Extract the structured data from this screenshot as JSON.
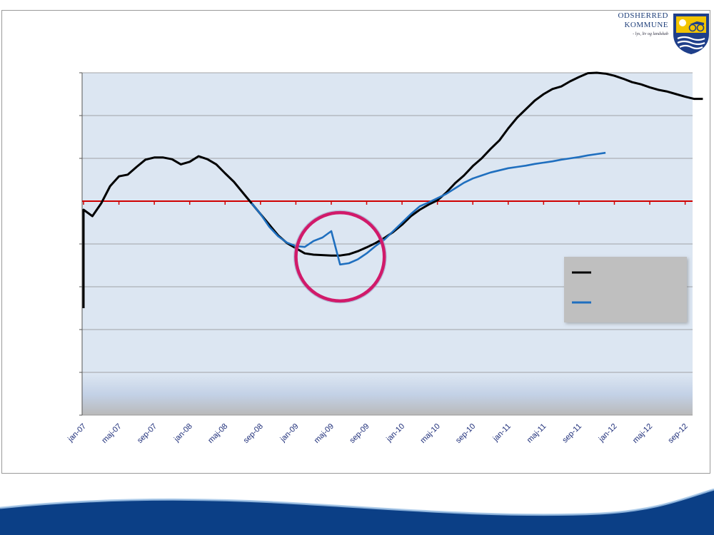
{
  "logo": {
    "line1": "ODSHERRED",
    "line2": "KOMMUNE",
    "tagline": "- lys, liv og landskab"
  },
  "colors": {
    "frame": "#9a9a9a",
    "plot_bg_top": "#dce6f2",
    "axis_line": "#d00000",
    "series_actual": "#000000",
    "series_forecast": "#1f6fbf",
    "highlight_circle": "#d11a6a",
    "legend_box": "#bfbfbf",
    "wave_dark": "#0b3f86"
  },
  "chart_data": {
    "type": "line",
    "title": "",
    "xlabel": "",
    "ylabel": "",
    "x_tick_labels": [
      "jan-07",
      "maj-07",
      "sep-07",
      "jan-08",
      "maj-08",
      "sep-08",
      "jan-09",
      "maj-09",
      "sep-09",
      "jan-10",
      "maj-10",
      "sep-10",
      "jan-11",
      "maj-11",
      "sep-11",
      "jan-12",
      "maj-12",
      "sep-12"
    ],
    "ylim": [
      -5,
      3
    ],
    "y_gridlines": [
      -5,
      -4,
      -3,
      -2,
      -1,
      0,
      1,
      2,
      3
    ],
    "reference_line": 0,
    "grid": true,
    "legend_position": "bottom-right",
    "series": [
      {
        "key": "actual",
        "color": "#000000",
        "points": [
          [
            "2007-01",
            -0.2
          ],
          [
            "2007-02",
            -0.35
          ],
          [
            "2007-03",
            -0.05
          ],
          [
            "2007-04",
            0.35
          ],
          [
            "2007-05",
            0.58
          ],
          [
            "2007-06",
            0.62
          ],
          [
            "2007-07",
            0.8
          ],
          [
            "2007-08",
            0.97
          ],
          [
            "2007-09",
            1.02
          ],
          [
            "2007-10",
            1.02
          ],
          [
            "2007-11",
            0.98
          ],
          [
            "2007-12",
            0.86
          ],
          [
            "2008-01",
            0.92
          ],
          [
            "2008-02",
            1.05
          ],
          [
            "2008-03",
            0.98
          ],
          [
            "2008-04",
            0.86
          ],
          [
            "2008-05",
            0.65
          ],
          [
            "2008-06",
            0.45
          ],
          [
            "2008-07",
            0.2
          ],
          [
            "2008-08",
            -0.05
          ],
          [
            "2008-09",
            -0.3
          ],
          [
            "2008-10",
            -0.55
          ],
          [
            "2008-11",
            -0.8
          ],
          [
            "2008-12",
            -0.98
          ],
          [
            "2009-01",
            -1.1
          ],
          [
            "2009-02",
            -1.22
          ],
          [
            "2009-03",
            -1.25
          ],
          [
            "2009-04",
            -1.26
          ],
          [
            "2009-05",
            -1.27
          ],
          [
            "2009-06",
            -1.27
          ],
          [
            "2009-07",
            -1.24
          ],
          [
            "2009-08",
            -1.17
          ],
          [
            "2009-09",
            -1.08
          ],
          [
            "2009-10",
            -0.98
          ],
          [
            "2009-11",
            -0.86
          ],
          [
            "2009-12",
            -0.72
          ],
          [
            "2010-01",
            -0.55
          ],
          [
            "2010-02",
            -0.35
          ],
          [
            "2010-03",
            -0.2
          ],
          [
            "2010-04",
            -0.08
          ],
          [
            "2010-05",
            0.02
          ],
          [
            "2010-06",
            0.2
          ],
          [
            "2010-07",
            0.42
          ],
          [
            "2010-08",
            0.6
          ],
          [
            "2010-09",
            0.82
          ],
          [
            "2010-10",
            1.0
          ],
          [
            "2010-11",
            1.22
          ],
          [
            "2010-12",
            1.42
          ],
          [
            "2011-01",
            1.7
          ],
          [
            "2011-02",
            1.95
          ],
          [
            "2011-03",
            2.15
          ],
          [
            "2011-04",
            2.35
          ],
          [
            "2011-05",
            2.5
          ],
          [
            "2011-06",
            2.62
          ],
          [
            "2011-07",
            2.68
          ],
          [
            "2011-08",
            2.8
          ],
          [
            "2011-09",
            2.9
          ],
          [
            "2011-10",
            2.99
          ],
          [
            "2011-11",
            3.0
          ],
          [
            "2011-12",
            2.98
          ],
          [
            "2012-01",
            2.93
          ],
          [
            "2012-02",
            2.86
          ],
          [
            "2012-03",
            2.78
          ],
          [
            "2012-04",
            2.73
          ],
          [
            "2012-05",
            2.66
          ],
          [
            "2012-06",
            2.6
          ],
          [
            "2012-07",
            2.56
          ],
          [
            "2012-08",
            2.5
          ],
          [
            "2012-09",
            2.44
          ],
          [
            "2012-10",
            2.39
          ],
          [
            "2012-11",
            2.39
          ]
        ]
      },
      {
        "key": "forecast",
        "color": "#1f6fbf",
        "points": [
          [
            "2008-08",
            -0.05
          ],
          [
            "2008-09",
            -0.3
          ],
          [
            "2008-10",
            -0.6
          ],
          [
            "2008-11",
            -0.82
          ],
          [
            "2008-12",
            -0.97
          ],
          [
            "2009-01",
            -1.05
          ],
          [
            "2009-02",
            -1.07
          ],
          [
            "2009-03",
            -0.93
          ],
          [
            "2009-04",
            -0.85
          ],
          [
            "2009-05",
            -0.7
          ],
          [
            "2009-06",
            -1.48
          ],
          [
            "2009-07",
            -1.45
          ],
          [
            "2009-08",
            -1.36
          ],
          [
            "2009-09",
            -1.22
          ],
          [
            "2009-10",
            -1.05
          ],
          [
            "2009-11",
            -0.9
          ],
          [
            "2009-12",
            -0.7
          ],
          [
            "2010-01",
            -0.5
          ],
          [
            "2010-02",
            -0.3
          ],
          [
            "2010-03",
            -0.12
          ],
          [
            "2010-04",
            -0.03
          ],
          [
            "2010-05",
            0.07
          ],
          [
            "2010-06",
            0.17
          ],
          [
            "2010-07",
            0.3
          ],
          [
            "2010-08",
            0.43
          ],
          [
            "2010-09",
            0.53
          ],
          [
            "2010-10",
            0.6
          ],
          [
            "2010-11",
            0.67
          ],
          [
            "2010-12",
            0.72
          ],
          [
            "2011-01",
            0.77
          ],
          [
            "2011-02",
            0.8
          ],
          [
            "2011-03",
            0.83
          ],
          [
            "2011-04",
            0.87
          ],
          [
            "2011-05",
            0.9
          ],
          [
            "2011-06",
            0.93
          ],
          [
            "2011-07",
            0.97
          ],
          [
            "2011-08",
            1.0
          ],
          [
            "2011-09",
            1.03
          ],
          [
            "2011-10",
            1.07
          ],
          [
            "2011-11",
            1.1
          ],
          [
            "2011-12",
            1.13
          ]
        ]
      }
    ],
    "annotations": [
      {
        "type": "circle",
        "center": [
          "2009-06",
          -1.3
        ],
        "radius_months": 2.9
      }
    ]
  }
}
